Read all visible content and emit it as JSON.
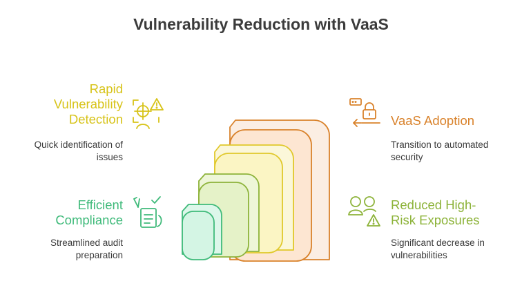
{
  "title": "Vulnerability Reduction with VaaS",
  "colors": {
    "yellow": "#d7c318",
    "orange": "#d9822b",
    "green": "#3fba7a",
    "olive": "#8db33a"
  },
  "items": {
    "rapid_detection": {
      "heading": "Rapid Vulnerability Detection",
      "description": "Quick identification of issues",
      "icon": "target-warning-icon",
      "color": "#d7c318"
    },
    "vaas_adoption": {
      "heading": "VaaS Adoption",
      "description": "Transition to automated security",
      "icon": "lock-arrow-icon",
      "color": "#d9822b"
    },
    "efficient_compliance": {
      "heading": "Efficient Compliance",
      "description": "Streamlined audit preparation",
      "icon": "checklist-hand-icon",
      "color": "#3fba7a"
    },
    "reduced_exposures": {
      "heading": "Reduced High-Risk Exposures",
      "description": "Significant decrease in vulnerabilities",
      "icon": "users-warning-icon",
      "color": "#8db33a"
    }
  }
}
